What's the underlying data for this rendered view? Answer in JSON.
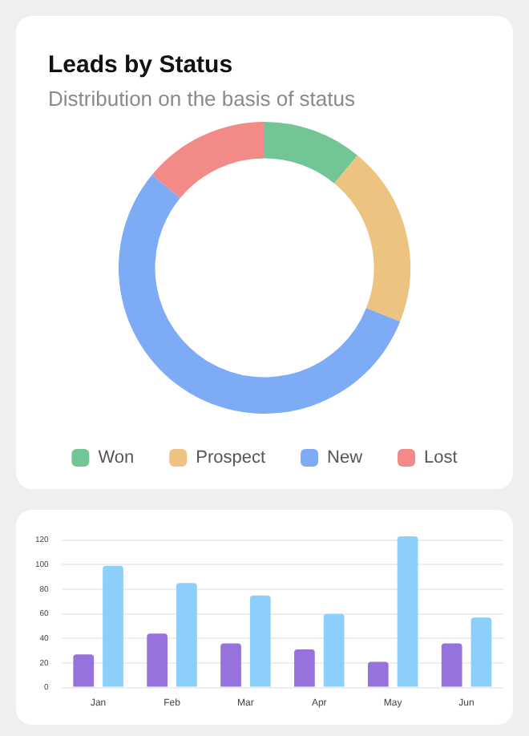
{
  "chart_data": [
    {
      "type": "donut",
      "title": "Leads by Status",
      "subtitle": "Distribution on the basis of status",
      "categories": [
        "Won",
        "Prospect",
        "New",
        "Lost"
      ],
      "values": [
        11,
        20,
        55,
        14
      ],
      "colors": [
        "#72c594",
        "#edc382",
        "#7eabf5",
        "#f28a88"
      ],
      "legend": "bottom"
    },
    {
      "type": "bar",
      "categories": [
        "Jan",
        "Feb",
        "Mar",
        "Apr",
        "May",
        "Jun"
      ],
      "series": [
        {
          "color": "#9672dc",
          "values": [
            27,
            44,
            36,
            31,
            21,
            36
          ]
        },
        {
          "color": "#8bcffa",
          "values": [
            99,
            85,
            75,
            60,
            123,
            57
          ]
        }
      ],
      "ylim": [
        0,
        125
      ],
      "yticks": [
        0,
        20,
        40,
        60,
        80,
        100,
        120
      ],
      "grid": "y"
    }
  ]
}
